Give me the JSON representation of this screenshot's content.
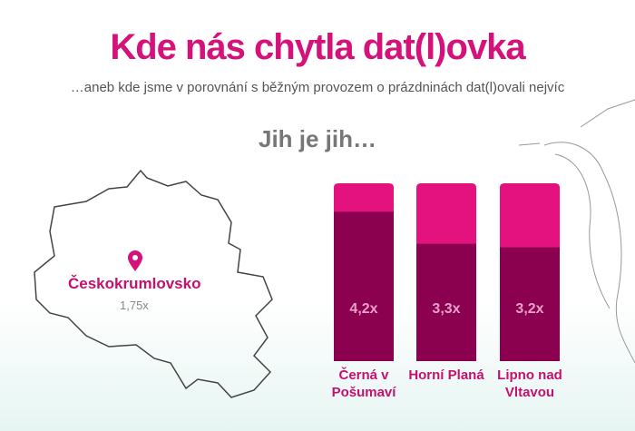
{
  "header": {
    "title": "Kde nás chytla dat(l)ovka",
    "subtitle": "…aneb kde jsme v porovnání s běžným provozem o prázdninách dat(l)ovali nejvíc"
  },
  "map": {
    "label": "Českokrumlovsko",
    "value_label": "1,75x"
  },
  "chart_data": {
    "type": "bar",
    "title": "Jih je jih…",
    "categories": [
      "Černá v Pošumaví",
      "Horní Planá",
      "Lipno nad Vltavou"
    ],
    "values": [
      4.2,
      3.3,
      3.2
    ],
    "value_labels": [
      "4,2x",
      "3,3x",
      "3,2x"
    ],
    "color": "#8c0050",
    "background_color": "#e3127f",
    "ylim": [
      0,
      5
    ]
  }
}
